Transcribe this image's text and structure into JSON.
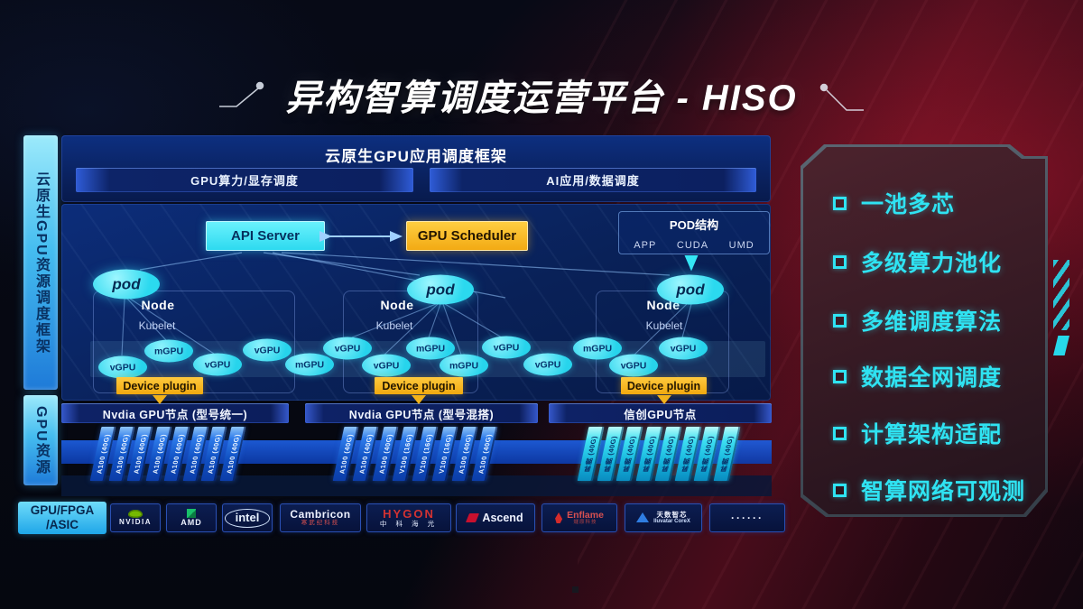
{
  "title": {
    "text": "异构智算调度运营平台 - HISO"
  },
  "sidebar": {
    "framework": "云原生GPU资源调度框架",
    "gpu_resource": "GPU资源",
    "hardware_line1": "GPU/FPGA",
    "hardware_line2": "/ASIC"
  },
  "top_framework": {
    "title": "云原生GPU应用调度框架",
    "left_module": "GPU算力/显存调度",
    "right_module": "AI应用/数据调度"
  },
  "control_plane": {
    "api_server": "API Server",
    "gpu_scheduler": "GPU Scheduler"
  },
  "pod_structure": {
    "title": "POD结构",
    "layers": [
      "APP",
      "CUDA",
      "UMD"
    ]
  },
  "cluster": {
    "pod_label": "pod",
    "node_label": "Node",
    "kubelet_label": "Kubelet",
    "device_plugin_label": "Device plugin",
    "gpu_units": [
      "vGPU",
      "mGPU",
      "vGPU",
      "vGPU",
      "mGPU",
      "vGPU",
      "vGPU",
      "mGPU",
      "mGPU",
      "vGPU",
      "vGPU",
      "mGPU",
      "vGPU",
      "vGPU"
    ]
  },
  "gpu_racks": [
    {
      "header": "Nvdia GPU节点 (型号统一)",
      "cards": [
        "A100 (40G)",
        "A100 (40G)",
        "A100 (40G)",
        "A100 (40G)",
        "A100 (40G)",
        "A100 (40G)",
        "A100 (40G)",
        "A100 (40G)"
      ]
    },
    {
      "header": "Nvdia GPU节点 (型号混搭)",
      "cards": [
        "A100 (40G)",
        "A100 (40G)",
        "A100 (40G)",
        "V100 (16G)",
        "V100 (16G)",
        "V100 (16G)",
        "A100 (40G)",
        "A100 (40G)"
      ]
    },
    {
      "header": "信创GPU节点",
      "cards": [
        "昇腾 (40G)",
        "昇腾 (40G)",
        "昇腾 (40G)",
        "昇腾 (40G)",
        "昇腾 (40G)",
        "昇腾 (40G)",
        "昇腾 (40G)",
        "昇腾 (40G)"
      ]
    }
  ],
  "vendors": {
    "items": [
      {
        "type": "nvidia",
        "icon": "nvidia-logo-icon",
        "name": "NVIDIA"
      },
      {
        "type": "amd",
        "icon": "amd-logo-icon",
        "name": "AMD"
      },
      {
        "type": "intel",
        "icon": "intel-logo-icon",
        "name": "intel"
      },
      {
        "type": "cambricon",
        "icon": "cambricon-logo-icon",
        "name": "Cambricon",
        "sub": "寒武纪科技"
      },
      {
        "type": "hygon",
        "icon": "hygon-logo-icon",
        "name": "HYGON",
        "sub": "中 科 海 光"
      },
      {
        "type": "ascend",
        "icon": "ascend-logo-icon",
        "name": "Ascend"
      },
      {
        "type": "enflame",
        "icon": "enflame-logo-icon",
        "name": "Enflame",
        "sub": "燧原科技"
      },
      {
        "type": "iluvatar",
        "icon": "iluvatar-logo-icon",
        "name": "天数智芯",
        "sub": "Iluvatar CoreX"
      },
      {
        "type": "dots",
        "icon": "ellipsis-icon",
        "name": "······"
      }
    ]
  },
  "features": [
    "一池多芯",
    "多级算力池化",
    "多维调度算法",
    "数据全网调度",
    "计算架构适配",
    "智算网络可观测"
  ],
  "colors": {
    "accent_cyan": "#2fe3f2",
    "accent_yellow": "#f2b21a",
    "card_blue": "#1050c2",
    "card_cyan": "#14b4dc",
    "panel_blue": "#0a2260",
    "accent_red": "#a01225",
    "nvidia_green": "#76b900"
  }
}
